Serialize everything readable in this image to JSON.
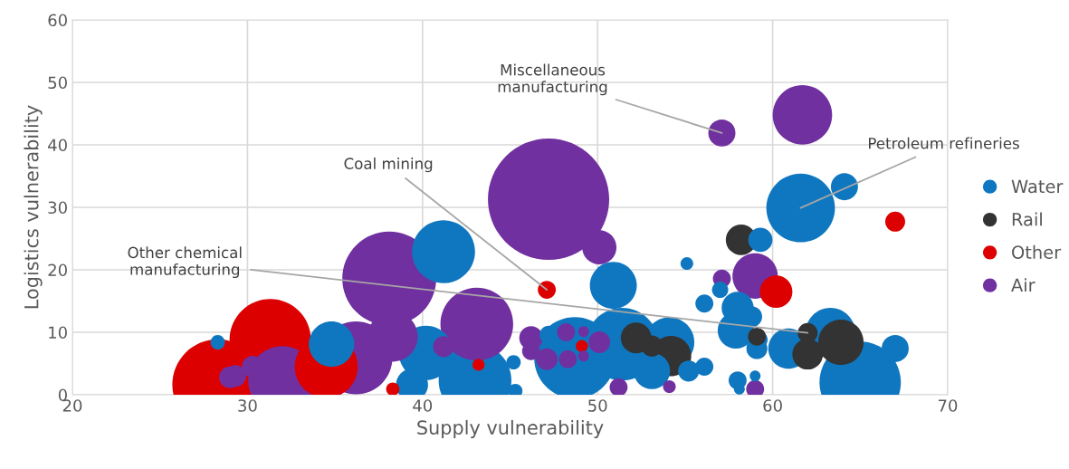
{
  "chart_data": {
    "type": "bubble",
    "xlabel": "Supply vulnerability",
    "ylabel": "Logistics vulnerability",
    "xlim": [
      20,
      70
    ],
    "xticks": [
      20,
      30,
      40,
      50,
      60,
      70
    ],
    "ylim": [
      0,
      60
    ],
    "yticks": [
      0,
      10,
      20,
      30,
      40,
      50,
      60
    ],
    "grid": true,
    "legend": "right",
    "series": [
      {
        "name": "Water",
        "color": "#0f77c0",
        "x": [
          41.2,
          61.6,
          64.1,
          59.3,
          55.1,
          50.9,
          56.1,
          57.0,
          65.0,
          63.3,
          67.0,
          60.9,
          48.7,
          51.4,
          43.0,
          40.2,
          34.8,
          28.3,
          39.4,
          45.3,
          54.1,
          53.1,
          55.2,
          56.1,
          58.0,
          58.8,
          57.9,
          59.2,
          59.1,
          58.0,
          59.0,
          58.1,
          45.2,
          47.2
        ],
        "values": [
          22.9,
          29.9,
          33.3,
          24.8,
          21.0,
          17.5,
          14.6,
          16.8,
          2.0,
          9.9,
          7.4,
          7.4,
          5.9,
          8.1,
          2.3,
          6.7,
          8.1,
          8.4,
          1.6,
          0.6,
          8.4,
          3.8,
          3.8,
          4.5,
          13.9,
          12.5,
          10.3,
          8.8,
          7.4,
          2.3,
          3.0,
          0.9,
          5.2,
          9.6
        ],
        "sizes": [
          0.27,
          0.32,
          0.05,
          0.04,
          0.011,
          0.15,
          0.022,
          0.018,
          0.45,
          0.17,
          0.05,
          0.11,
          0.45,
          0.36,
          0.36,
          0.2,
          0.14,
          0.014,
          0.07,
          0.014,
          0.17,
          0.09,
          0.03,
          0.022,
          0.07,
          0.03,
          0.09,
          0.022,
          0.03,
          0.022,
          0.008,
          0.008,
          0.014,
          0.022
        ]
      },
      {
        "name": "Rail",
        "color": "#333333",
        "x": [
          58.2,
          63.9,
          62.0,
          62.0,
          59.1,
          52.2,
          53.1,
          54.2
        ],
        "values": [
          24.8,
          8.4,
          6.5,
          9.9,
          9.3,
          9.1,
          7.8,
          6.2
        ],
        "sizes": [
          0.064,
          0.14,
          0.064,
          0.027,
          0.022,
          0.064,
          0.03,
          0.11
        ]
      },
      {
        "name": "Other",
        "color": "#dd0000",
        "x": [
          67.0,
          60.2,
          47.1,
          31.3,
          28.3,
          34.5,
          43.2,
          38.3,
          49.1
        ],
        "values": [
          27.7,
          16.5,
          16.8,
          8.8,
          1.6,
          4.5,
          4.8,
          0.9,
          7.8
        ],
        "sizes": [
          0.027,
          0.072,
          0.022,
          0.45,
          0.56,
          0.27,
          0.01,
          0.012,
          0.01
        ]
      },
      {
        "name": "Air",
        "color": "#7030a0",
        "x": [
          61.7,
          57.1,
          47.2,
          50.1,
          38.1,
          43.1,
          59.0,
          57.1,
          38.3,
          36.2,
          32.0,
          29.3,
          30.3,
          29.0,
          41.2,
          46.2,
          46.2,
          47.1,
          48.2,
          49.2,
          50.1,
          48.3,
          49.2,
          51.2,
          54.1,
          59.0
        ],
        "values": [
          44.8,
          41.9,
          31.3,
          23.6,
          18.6,
          11.3,
          19.0,
          18.6,
          9.3,
          5.9,
          2.3,
          3.0,
          4.5,
          2.8,
          7.7,
          9.1,
          7.0,
          5.7,
          10.0,
          10.1,
          8.4,
          5.7,
          6.2,
          1.2,
          1.3,
          0.9
        ],
        "sizes": [
          0.24,
          0.05,
          1,
          0.08,
          0.6,
          0.36,
          0.14,
          0.022,
          0.17,
          0.36,
          0.32,
          0.032,
          0.032,
          0.032,
          0.03,
          0.038,
          0.022,
          0.032,
          0.022,
          0.008,
          0.032,
          0.022,
          0.008,
          0.022,
          0.011,
          0.022
        ]
      }
    ],
    "annotations": [
      {
        "text": "Miscellaneous\nmanufacturing",
        "x": 57.1,
        "y": 41.9
      },
      {
        "text": "Coal mining",
        "x": 47.1,
        "y": 16.8
      },
      {
        "text": "Petroleum refineries",
        "x": 61.6,
        "y": 29.9
      },
      {
        "text": "Other chemical\nmanufacturing",
        "x": 62.0,
        "y": 9.9
      }
    ]
  }
}
